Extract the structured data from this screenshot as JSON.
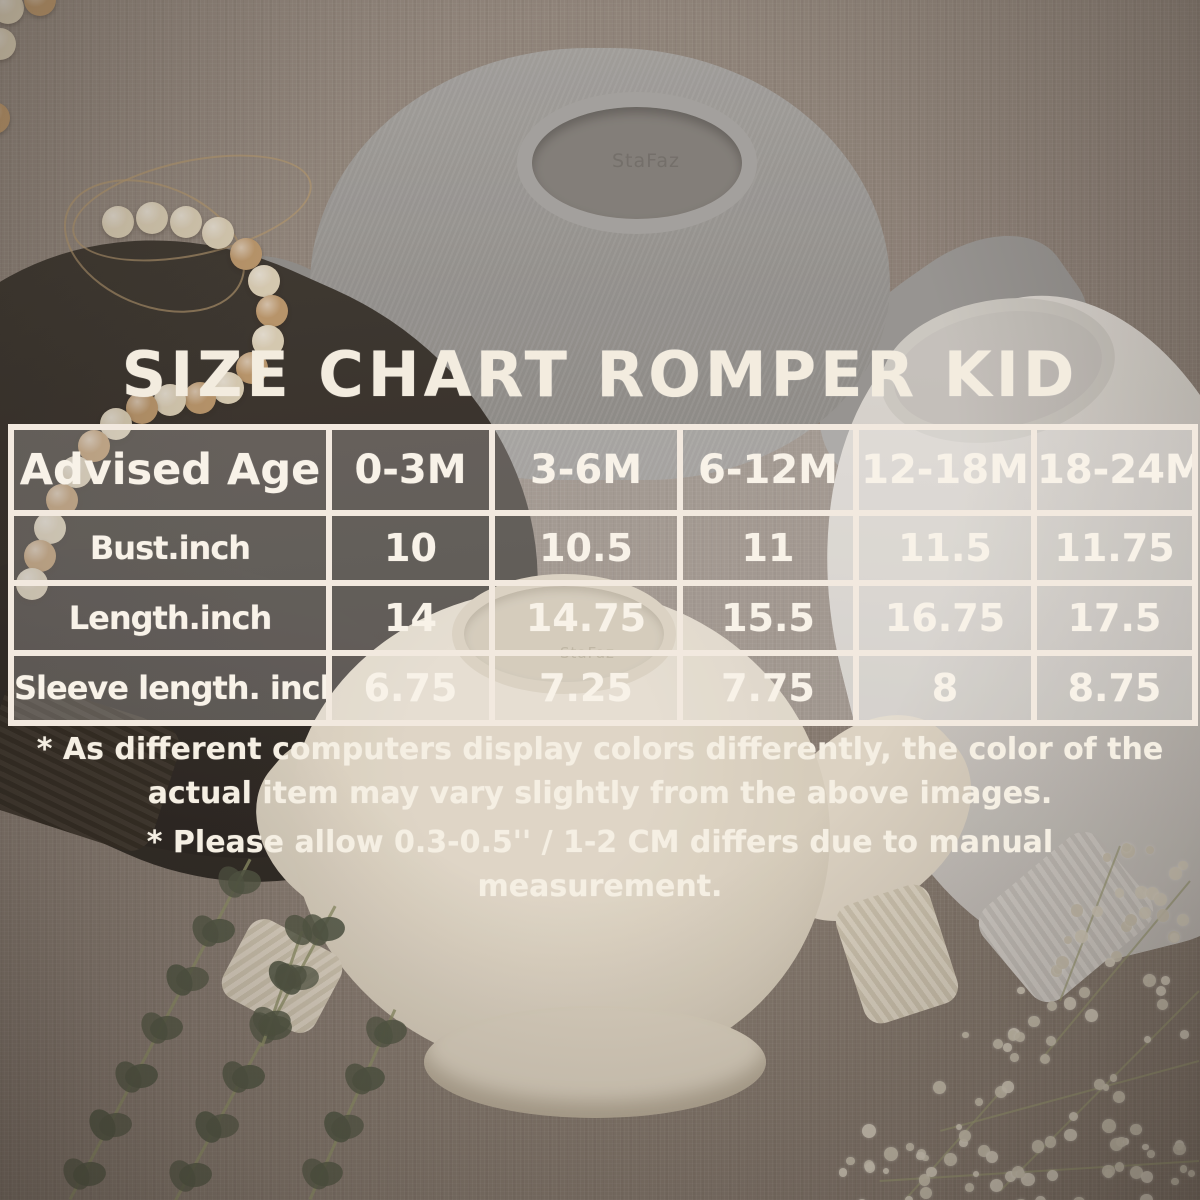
{
  "chart_data": {
    "type": "table",
    "title": "SIZE CHART ROMPER KID",
    "columns": [
      "Advised Age",
      "0-3M",
      "3-6M",
      "6-12M",
      "12-18M",
      "18-24M"
    ],
    "rows": [
      [
        "Bust.inch",
        "10",
        "10.5",
        "11",
        "11.5",
        "11.75"
      ],
      [
        "Length.inch",
        "14",
        "14.75",
        "15.5",
        "16.75",
        "17.5"
      ],
      [
        "Sleeve length. inch",
        "6.75",
        "7.25",
        "7.75",
        "8",
        "8.75"
      ]
    ],
    "units": "inch",
    "legend_position": "none",
    "grid": true
  },
  "notes": [
    "* As different computers display colors differently, the color of the actual item may vary slightly from the above images.",
    "* Please allow 0.3-0.5'' / 1-2 CM differs due to manual measurement."
  ],
  "brand_label": "StaFaz",
  "colors": {
    "table_border": "#f2e9df",
    "table_text": "#f8f2e8",
    "title_text": "#f3ecdf",
    "linen_background": "#8b8077",
    "gray_romper": "#9a9a98",
    "black_romper": "#2a2622",
    "white_romper": "#dedcd7",
    "cream_romper": "#e9e1d1",
    "bead_cream": "#e2d7bd",
    "bead_tan": "#c09a6b",
    "eucalyptus_leaf": "#49523f",
    "babys_breath": "#e3ddcc"
  }
}
